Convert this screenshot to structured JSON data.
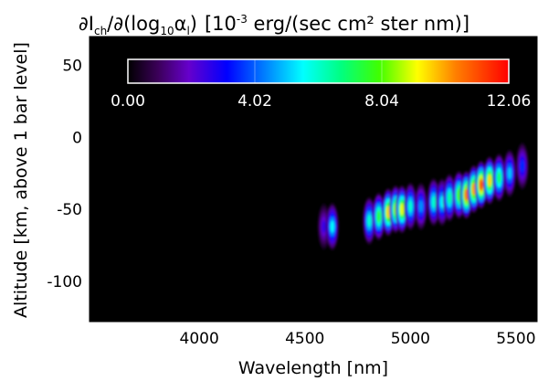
{
  "chart_data": {
    "type": "heatmap",
    "title": "∂I_ch/∂(log10 α_l) [10^-3 erg/(sec cm² ster nm)]",
    "title_parts": {
      "num_main": "∂I",
      "num_sub": "ch",
      "mid": "/∂(log",
      "log_sub": "10",
      "alpha": "α",
      "alpha_sub": "l",
      "close": ")",
      "units_pre": "[10",
      "units_exp": "-3",
      "units_post": " erg/(sec cm² ster nm)]"
    },
    "xlabel": "Wavelength [nm]",
    "ylabel": "Altitude [km, above 1 bar level]",
    "xlim": [
      3480,
      5600
    ],
    "ylim": [
      -128,
      70
    ],
    "xticks": [
      "4000",
      "4500",
      "5000",
      "5500"
    ],
    "yticks": [
      "50",
      "0",
      "-50",
      "-100"
    ],
    "colorbar": {
      "min": 0.0,
      "max": 12.06,
      "tick_labels": [
        "0.00",
        "4.02",
        "8.04",
        "12.06"
      ],
      "tick_values": [
        0.0,
        4.02,
        8.04,
        12.06
      ],
      "colormap": "rainbow"
    },
    "grid": false,
    "background_color": "#000000",
    "features": [
      {
        "wavelength": 4590,
        "altitude": -62,
        "value": 2.5
      },
      {
        "wavelength": 4630,
        "altitude": -62,
        "value": 5.5
      },
      {
        "wavelength": 4805,
        "altitude": -58,
        "value": 6.0
      },
      {
        "wavelength": 4850,
        "altitude": -55,
        "value": 7.5
      },
      {
        "wavelength": 4895,
        "altitude": -52,
        "value": 9.5
      },
      {
        "wavelength": 4930,
        "altitude": -50,
        "value": 8.5
      },
      {
        "wavelength": 4960,
        "altitude": -50,
        "value": 9.0
      },
      {
        "wavelength": 5000,
        "altitude": -48,
        "value": 6.0
      },
      {
        "wavelength": 5050,
        "altitude": -48,
        "value": 4.5
      },
      {
        "wavelength": 5110,
        "altitude": -45,
        "value": 6.0
      },
      {
        "wavelength": 5150,
        "altitude": -45,
        "value": 5.5
      },
      {
        "wavelength": 5185,
        "altitude": -42,
        "value": 6.5
      },
      {
        "wavelength": 5230,
        "altitude": -40,
        "value": 8.0
      },
      {
        "wavelength": 5265,
        "altitude": -40,
        "value": 10.5
      },
      {
        "wavelength": 5300,
        "altitude": -36,
        "value": 10.0
      },
      {
        "wavelength": 5335,
        "altitude": -33,
        "value": 11.0
      },
      {
        "wavelength": 5375,
        "altitude": -30,
        "value": 9.5
      },
      {
        "wavelength": 5420,
        "altitude": -28,
        "value": 7.0
      },
      {
        "wavelength": 5470,
        "altitude": -25,
        "value": 5.0
      },
      {
        "wavelength": 5530,
        "altitude": -20,
        "value": 3.5
      }
    ]
  }
}
